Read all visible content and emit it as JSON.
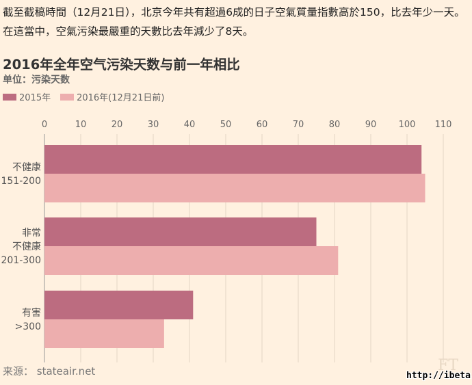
{
  "article": {
    "intro": "截至截稿時間（12月21日），北京今年共有超過6成的日子空氣質量指數高於150，比去年少一天。在這當中，空氣污染最嚴重的天數比去年減少了8天。"
  },
  "chart_data": {
    "type": "bar",
    "orientation": "horizontal",
    "title": "2016年全年空气污染天数与前一年相比",
    "subtitle": "单位：污染天数",
    "categories": [
      [
        "不健康",
        "151-200"
      ],
      [
        "非常",
        "不健康",
        "201-300"
      ],
      [
        "有害",
        ">300"
      ]
    ],
    "series": [
      {
        "name": "2015年",
        "color": "#bc6c80",
        "values": [
          104,
          75,
          41
        ]
      },
      {
        "name": "2016年(12月21日前)",
        "color": "#edaeae",
        "values": [
          105,
          81,
          33
        ]
      }
    ],
    "xlim": [
      0,
      110
    ],
    "ticks": [
      0,
      10,
      20,
      30,
      40,
      50,
      60,
      70,
      80,
      90,
      100,
      110
    ],
    "grid": true,
    "legend_position": "top-left"
  },
  "footer": {
    "source": "来源： stateair.net",
    "brand": "FT",
    "watermark": "http://ibeta.tw"
  }
}
